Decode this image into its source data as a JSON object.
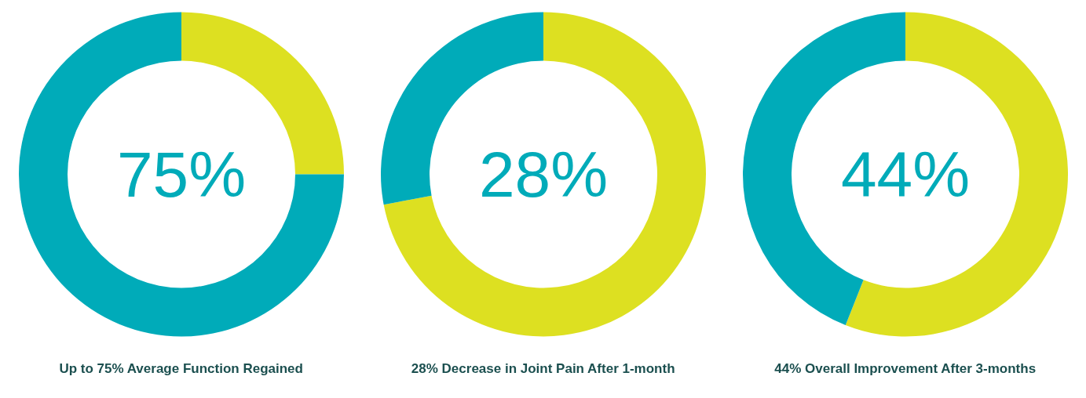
{
  "chart_data": [
    {
      "type": "donut",
      "title": "Up to 75% Average Function Regained",
      "categories": [
        null,
        null
      ],
      "values": [
        75,
        25
      ],
      "colors": [
        "#00abb9",
        "#dde021"
      ],
      "annotations": [
        "75%"
      ]
    },
    {
      "type": "donut",
      "title": "28% Decrease in Joint Pain After 1-month",
      "categories": [
        null,
        null
      ],
      "values": [
        28,
        72
      ],
      "colors": [
        "#00abb9",
        "#dde021"
      ],
      "annotations": [
        "28%"
      ]
    },
    {
      "type": "donut",
      "title": "44% Overall Improvement After 3-months",
      "categories": [
        null,
        null
      ],
      "values": [
        44,
        56
      ],
      "colors": [
        "#00abb9",
        "#dde021"
      ],
      "annotations": [
        "44%"
      ]
    }
  ]
}
